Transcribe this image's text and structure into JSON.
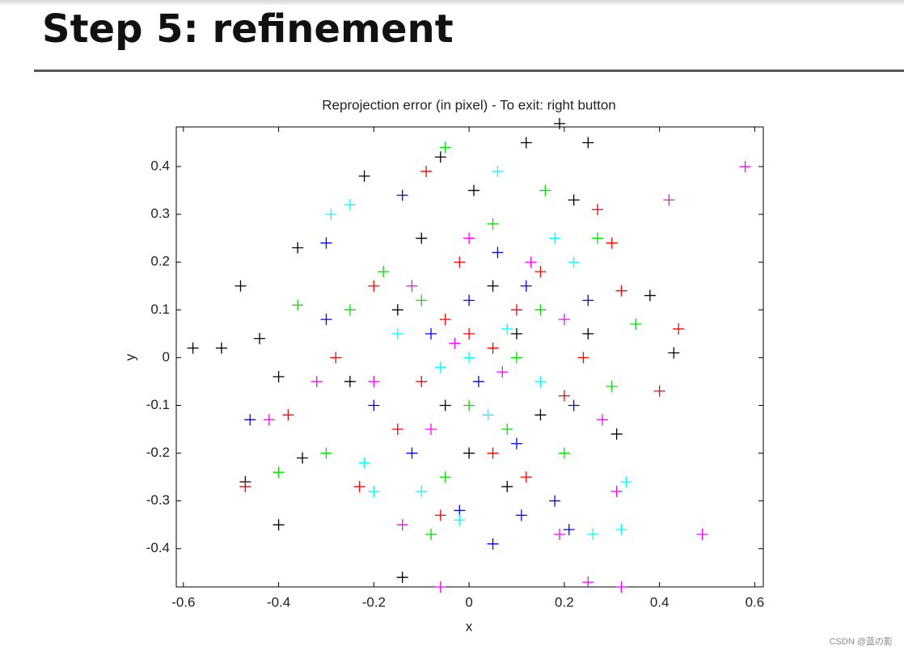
{
  "heading": "Step 5: refinement",
  "watermark": "CSDN @蓝の影",
  "chart_data": {
    "type": "scatter",
    "title": "Reprojection error (in pixel) - To exit: right button",
    "x_label": "x",
    "y_label": "y",
    "xlim": [
      -0.615,
      0.618
    ],
    "ylim": [
      -0.48,
      0.483
    ],
    "xticks": [
      -0.6,
      -0.4,
      -0.2,
      0,
      0.2,
      0.4,
      0.6
    ],
    "yticks": [
      -0.4,
      -0.3,
      -0.2,
      -0.1,
      0,
      0.1,
      0.2,
      0.3,
      0.4
    ],
    "marker": "plus",
    "series": [
      {
        "color": "#000000",
        "x": [
          -0.58,
          -0.52,
          -0.48,
          -0.44,
          -0.4,
          -0.47,
          -0.36,
          -0.14,
          -0.22,
          0.12,
          0.25,
          0.38,
          0.43,
          0.01,
          -0.06,
          0.19,
          0.22,
          0.31,
          -0.35,
          -0.4,
          0.1,
          -0.05,
          0.05,
          -0.15,
          0.15,
          0,
          -0.25,
          0.25,
          -0.1,
          0.08
        ],
        "values": [
          0.02,
          0.02,
          0.15,
          0.04,
          -0.35,
          -0.26,
          0.23,
          -0.46,
          0.38,
          0.45,
          0.45,
          0.13,
          0.01,
          0.35,
          0.42,
          0.49,
          0.33,
          -0.16,
          -0.21,
          -0.04,
          0.05,
          -0.1,
          0.15,
          0.1,
          -0.12,
          -0.2,
          -0.05,
          0.05,
          0.25,
          -0.27
        ]
      },
      {
        "color": "#ff0000",
        "x": [
          0.44,
          0.4,
          -0.47,
          -0.38,
          0.27,
          0.32,
          -0.09,
          -0.06,
          -0.23,
          0.3,
          0,
          -0.05,
          0.05,
          -0.1,
          0.1,
          -0.15,
          0.15,
          -0.2,
          0.2,
          0.05,
          -0.02,
          0.12,
          -0.28,
          0.24
        ],
        "values": [
          0.06,
          -0.07,
          -0.27,
          -0.12,
          0.31,
          0.14,
          0.39,
          -0.33,
          -0.27,
          0.24,
          0.05,
          0.08,
          0.02,
          -0.05,
          0.1,
          -0.15,
          0.18,
          0.15,
          -0.08,
          -0.2,
          0.2,
          -0.25,
          0.0,
          0.0
        ]
      },
      {
        "color": "#00e000",
        "x": [
          -0.05,
          0.16,
          -0.08,
          -0.4,
          0.35,
          -0.36,
          0.27,
          -0.3,
          0.0,
          0.1,
          -0.1,
          0.2,
          -0.18,
          0.3,
          0.05,
          -0.05,
          0.15,
          -0.25,
          0.08
        ],
        "values": [
          0.44,
          0.35,
          -0.37,
          -0.24,
          0.07,
          0.11,
          0.25,
          -0.2,
          -0.1,
          0.0,
          0.12,
          -0.2,
          0.18,
          -0.06,
          0.28,
          -0.25,
          0.1,
          0.1,
          -0.15
        ]
      },
      {
        "color": "#0000ff",
        "x": [
          -0.46,
          0.05,
          0.21,
          -0.14,
          -0.3,
          0.11,
          0.18,
          -0.02,
          0.02,
          -0.08,
          0.12,
          -0.2,
          0.22,
          -0.12,
          0.06,
          0.25,
          -0.3,
          0.0,
          0.1
        ],
        "values": [
          -0.13,
          -0.39,
          -0.36,
          0.34,
          0.24,
          -0.33,
          -0.3,
          -0.32,
          -0.05,
          0.05,
          0.15,
          -0.1,
          -0.1,
          -0.2,
          0.22,
          0.12,
          0.08,
          0.12,
          -0.18
        ]
      },
      {
        "color": "#00ffff",
        "x": [
          0.32,
          0.26,
          0.06,
          -0.25,
          -0.29,
          -0.2,
          -0.02,
          0.33,
          0,
          -0.06,
          0.08,
          0.15,
          -0.15,
          0.18,
          -0.1,
          0.22,
          -0.22,
          0.04
        ],
        "values": [
          -0.36,
          -0.37,
          0.39,
          0.32,
          0.3,
          -0.28,
          -0.34,
          -0.26,
          0,
          -0.02,
          0.06,
          -0.05,
          0.05,
          0.25,
          -0.28,
          0.2,
          -0.22,
          -0.12
        ]
      },
      {
        "color": "#ff00ff",
        "x": [
          0.58,
          0.42,
          0.49,
          0.25,
          0.32,
          -0.06,
          -0.42,
          0.19,
          -0.14,
          0.31,
          -0.03,
          0.07,
          -0.12,
          0.13,
          -0.2,
          0.2,
          -0.08,
          0.28,
          -0.32,
          0
        ],
        "values": [
          0.4,
          0.33,
          -0.37,
          -0.47,
          -0.48,
          -0.48,
          -0.13,
          -0.37,
          -0.35,
          -0.28,
          0.03,
          -0.03,
          0.15,
          0.2,
          -0.05,
          0.08,
          -0.15,
          -0.13,
          -0.05,
          0.25
        ]
      }
    ]
  }
}
